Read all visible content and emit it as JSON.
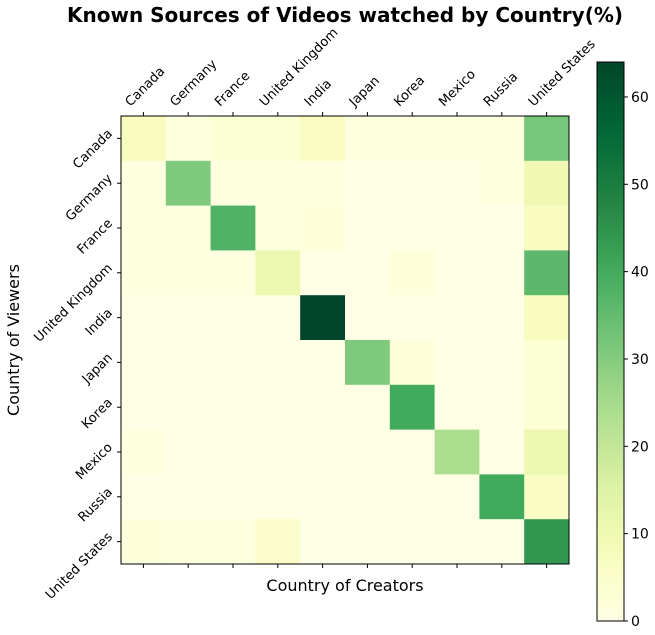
{
  "chart_data": {
    "type": "heatmap",
    "title": "Known Sources of Videos watched by Country(%)",
    "xlabel": "Country of Creators",
    "ylabel": "Country of Viewers",
    "x_categories": [
      "Canada",
      "Germany",
      "France",
      "United Kingdom",
      "India",
      "Japan",
      "Korea",
      "Mexico",
      "Russia",
      "United States"
    ],
    "y_categories": [
      "Canada",
      "Germany",
      "France",
      "United Kingdom",
      "India",
      "Japan",
      "Korea",
      "Mexico",
      "Russia",
      "United States"
    ],
    "values": [
      [
        7,
        1,
        3,
        3,
        6,
        1,
        1,
        1,
        1,
        32
      ],
      [
        1,
        31,
        1,
        1,
        1,
        0,
        0,
        0,
        1,
        10
      ],
      [
        1,
        1,
        38,
        1,
        2,
        0,
        0,
        0,
        0,
        7
      ],
      [
        1,
        1,
        1,
        11,
        0,
        0,
        2,
        0,
        0,
        36
      ],
      [
        0,
        0,
        0,
        0,
        64,
        0,
        0,
        0,
        0,
        7
      ],
      [
        0,
        0,
        0,
        0,
        0,
        31,
        2,
        0,
        0,
        3
      ],
      [
        0,
        0,
        0,
        0,
        0,
        0,
        40,
        0,
        0,
        3
      ],
      [
        1,
        0,
        0,
        0,
        0,
        0,
        0,
        24,
        0,
        11
      ],
      [
        0,
        0,
        0,
        0,
        0,
        0,
        0,
        0,
        40,
        6
      ],
      [
        2,
        1,
        1,
        5,
        0,
        0,
        0,
        0,
        0,
        44
      ]
    ],
    "colorbar": {
      "min": 0,
      "max": 64,
      "ticks": [
        0,
        10,
        20,
        30,
        40,
        50,
        60
      ],
      "colormap": "YlGn"
    },
    "grid": false
  }
}
